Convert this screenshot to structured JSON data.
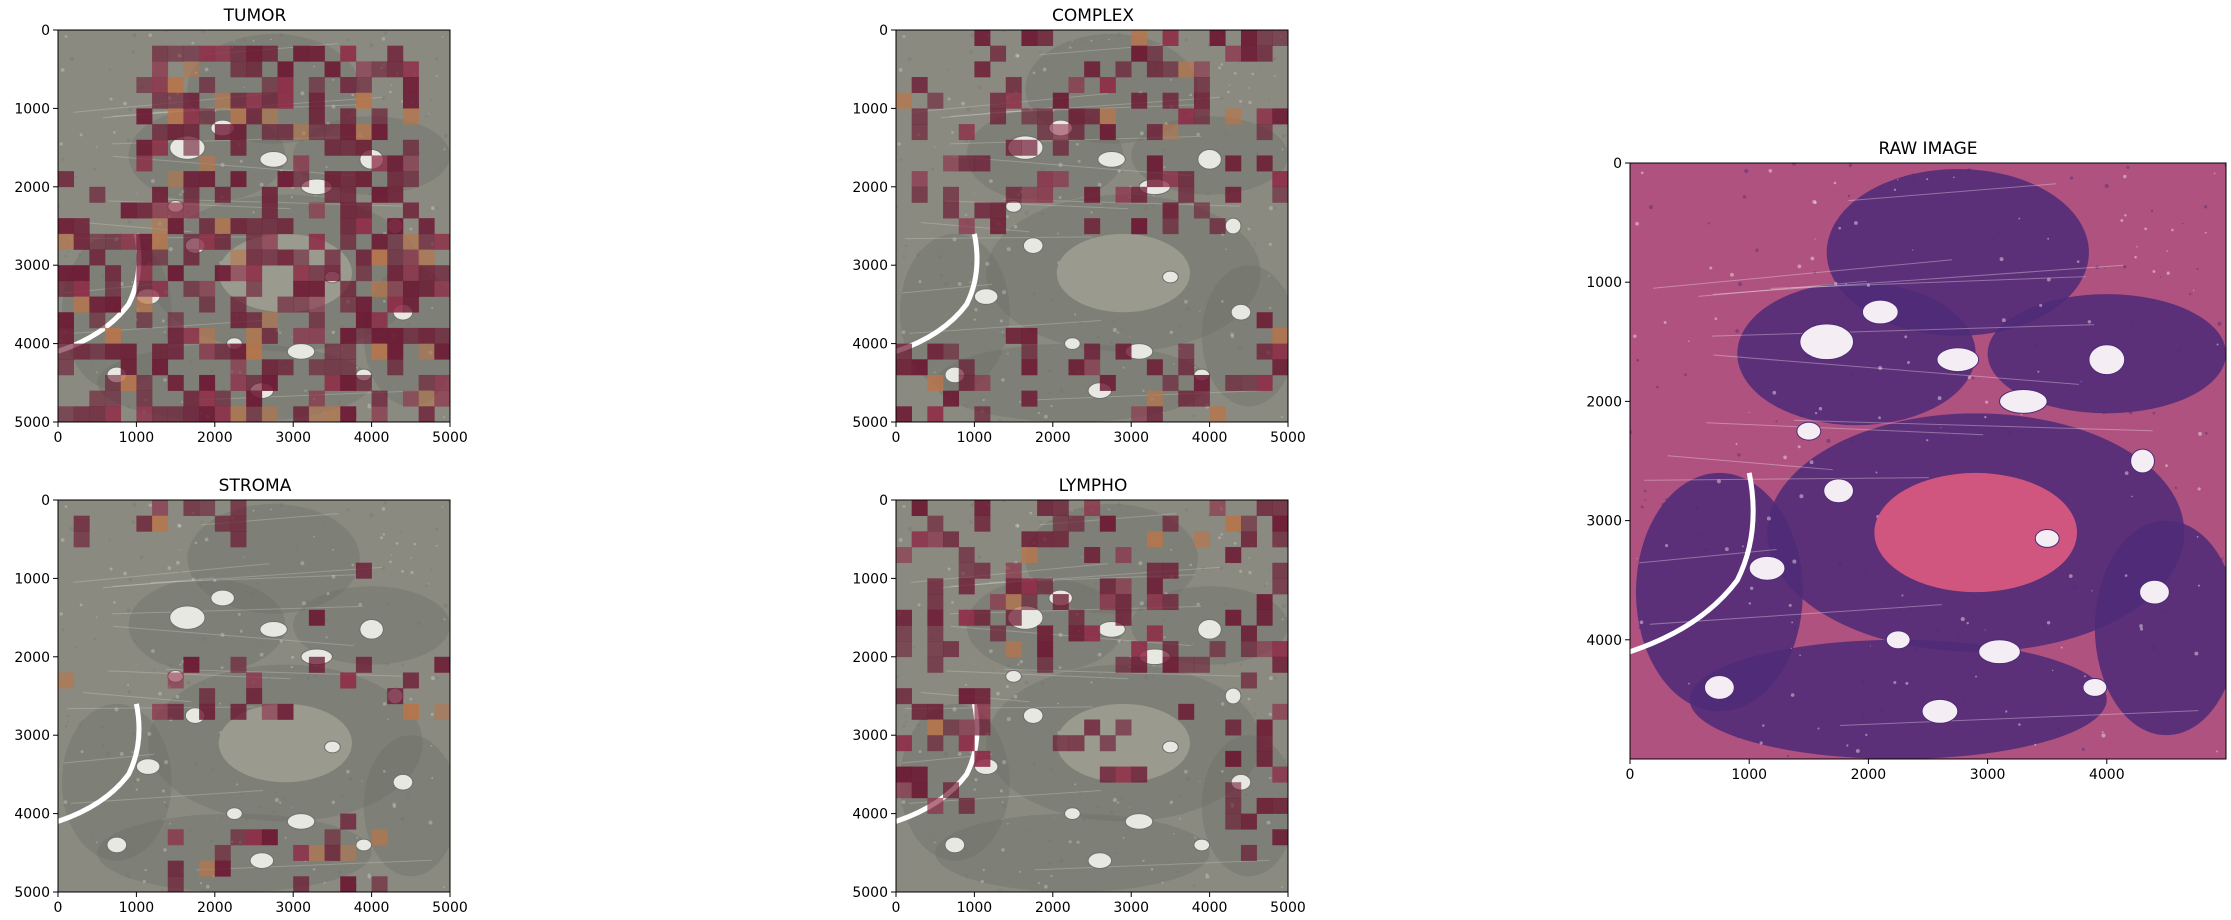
{
  "palette": {
    "background": "#ffffff",
    "tissue_gray": "#8a8a80",
    "tissue_dark": "#6f706a",
    "lumen": "#e8e8e2",
    "heat_dark": "#6b1530",
    "heat_mid": "#8e2a45",
    "heat_orange": "#b8754a",
    "he_stroma": "#b0527f",
    "he_nuclei": "#4d2a77",
    "he_lumen": "#f4eef4"
  },
  "chart_data": [
    {
      "type": "heatmap",
      "title": "TUMOR",
      "xlim": [
        0,
        5000
      ],
      "ylim": [
        5000,
        0
      ],
      "xticks": [
        0,
        1000,
        2000,
        3000,
        4000,
        5000
      ],
      "yticks": [
        0,
        1000,
        2000,
        3000,
        4000,
        5000
      ],
      "grid": false,
      "overlay_density": 0.55,
      "overlay_regions": [
        [
          0.2,
          0.05,
          0.9,
          0.45
        ],
        [
          0.0,
          0.45,
          1.0,
          0.95
        ],
        [
          0.0,
          0.75,
          1.0,
          1.0
        ]
      ]
    },
    {
      "type": "heatmap",
      "title": "COMPLEX",
      "xlim": [
        0,
        5000
      ],
      "ylim": [
        5000,
        0
      ],
      "xticks": [
        0,
        1000,
        2000,
        3000,
        4000,
        5000
      ],
      "yticks": [
        0,
        1000,
        2000,
        3000,
        4000,
        5000
      ],
      "grid": false,
      "overlay_density": 0.25,
      "overlay_regions": [
        [
          0.0,
          0.0,
          1.0,
          0.5
        ],
        [
          0.0,
          0.8,
          1.0,
          1.0
        ]
      ]
    },
    {
      "type": "heatmap",
      "title": "STROMA",
      "xlim": [
        0,
        5000
      ],
      "ylim": [
        5000,
        0
      ],
      "xticks": [
        0,
        1000,
        2000,
        3000,
        4000,
        5000
      ],
      "yticks": [
        0,
        1000,
        2000,
        3000,
        4000,
        5000
      ],
      "grid": false,
      "overlay_density": 0.22,
      "overlay_regions": [
        [
          0.0,
          0.0,
          0.5,
          0.12
        ],
        [
          0.25,
          0.42,
          1.0,
          0.55
        ],
        [
          0.3,
          0.82,
          0.85,
          0.98
        ]
      ]
    },
    {
      "type": "heatmap",
      "title": "LYMPHO",
      "xlim": [
        0,
        5000
      ],
      "ylim": [
        5000,
        0
      ],
      "xticks": [
        0,
        1000,
        2000,
        3000,
        4000,
        5000
      ],
      "yticks": [
        0,
        1000,
        2000,
        3000,
        4000,
        5000
      ],
      "grid": false,
      "overlay_density": 0.35,
      "overlay_regions": [
        [
          0.0,
          0.0,
          1.0,
          0.45
        ],
        [
          0.0,
          0.5,
          0.25,
          0.8
        ],
        [
          0.38,
          0.55,
          0.65,
          0.72
        ],
        [
          0.85,
          0.3,
          1.0,
          0.9
        ]
      ]
    },
    {
      "type": "image",
      "title": "RAW IMAGE",
      "xlim": [
        0,
        5000
      ],
      "ylim": [
        5000,
        0
      ],
      "xticks": [
        0,
        1000,
        2000,
        3000,
        4000
      ],
      "yticks": [
        0,
        1000,
        2000,
        3000,
        4000
      ],
      "grid": false
    }
  ]
}
